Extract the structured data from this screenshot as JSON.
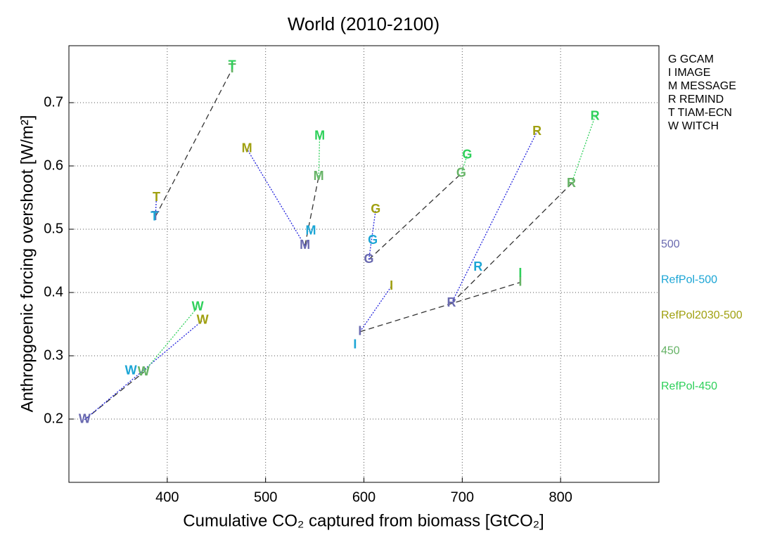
{
  "chart_data": {
    "type": "scatter",
    "title": "World (2010-2100)",
    "x_label": "Cumulative CO₂ captured from biomass [GtCO₂]",
    "y_label": "Anthropgoenic forcing overshoot [W/m²]",
    "xlim": [
      300,
      900
    ],
    "xticks": [
      400,
      500,
      600,
      700,
      800
    ],
    "ylim": [
      0.1,
      0.79
    ],
    "yticks": [
      0.2,
      0.3,
      0.4,
      0.5,
      0.6,
      0.7
    ],
    "grid": true,
    "models": [
      {
        "code": "G",
        "name": "GCAM"
      },
      {
        "code": "I",
        "name": "IMAGE"
      },
      {
        "code": "M",
        "name": "MESSAGE"
      },
      {
        "code": "R",
        "name": "REMIND"
      },
      {
        "code": "T",
        "name": "TIAM-ECN"
      },
      {
        "code": "W",
        "name": "WITCH"
      }
    ],
    "series": [
      {
        "name": "500",
        "color": "#6a6ab0",
        "x": [
          605,
          596,
          540,
          689,
          388,
          316
        ],
        "values": [
          0.452,
          0.338,
          0.474,
          0.383,
          0.52,
          0.199
        ]
      },
      {
        "name": "RefPol-500",
        "color": "#1ba5d5",
        "x": [
          609,
          591,
          546,
          716,
          387,
          363
        ],
        "values": [
          0.482,
          0.317,
          0.497,
          0.44,
          0.519,
          0.276
        ]
      },
      {
        "name": "RefPol2030-500",
        "color": "#a0a010",
        "x": [
          612,
          628,
          481,
          776,
          389,
          436
        ],
        "values": [
          0.531,
          0.41,
          0.627,
          0.654,
          0.55,
          0.356
        ]
      },
      {
        "name": "450",
        "color": "#66b366",
        "x": [
          699,
          759,
          554,
          811,
          466,
          376
        ],
        "values": [
          0.588,
          0.416,
          0.583,
          0.572,
          0.753,
          0.274
        ]
      },
      {
        "name": "RefPol-450",
        "color": "#2ed05a",
        "x": [
          705,
          759,
          555,
          835,
          466,
          431
        ],
        "values": [
          0.617,
          0.43,
          0.647,
          0.678,
          0.758,
          0.377
        ]
      }
    ]
  }
}
